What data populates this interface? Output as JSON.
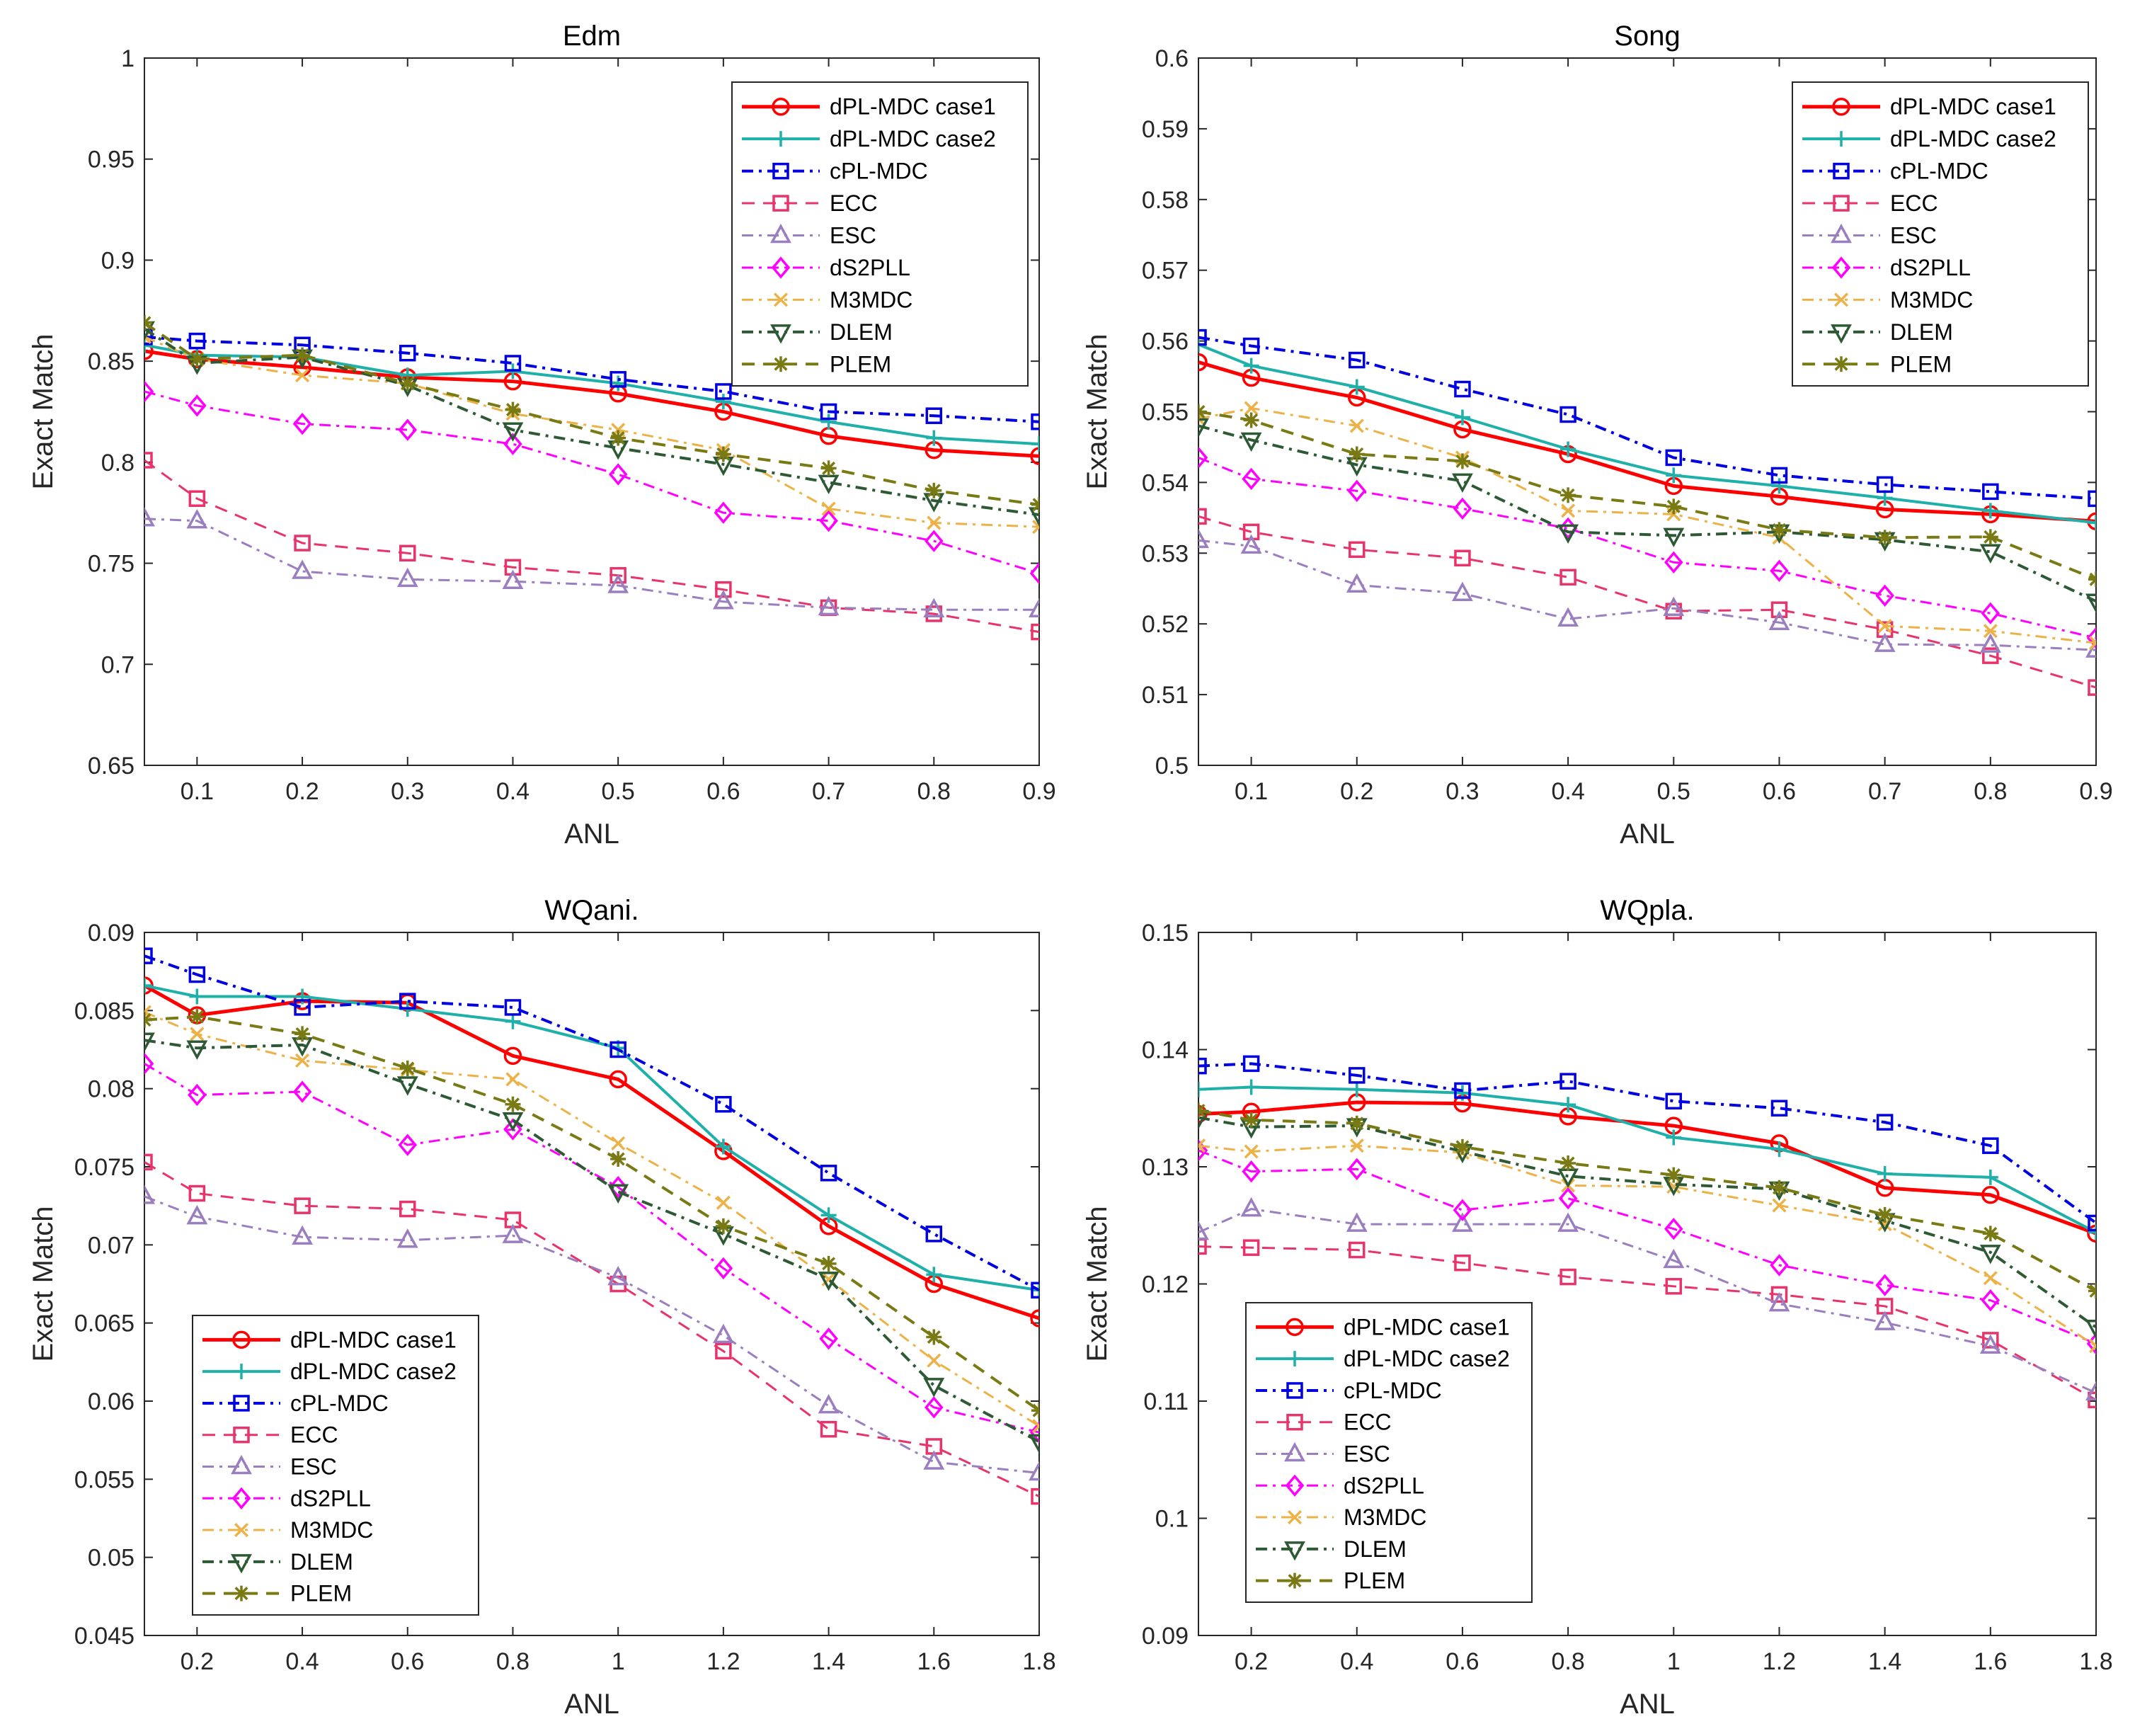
{
  "series_styles": [
    {
      "name": "dPL-MDC case1",
      "color": "#ff0000",
      "dash": "",
      "marker": "circle",
      "lw": 5
    },
    {
      "name": "dPL-MDC case2",
      "color": "#1fb0aa",
      "dash": "",
      "marker": "plus",
      "lw": 4
    },
    {
      "name": "cPL-MDC",
      "color": "#0000e0",
      "dash": "16 8 4 8",
      "marker": "square",
      "lw": 4
    },
    {
      "name": "ECC",
      "color": "#e8336b",
      "dash": "18 12",
      "marker": "square",
      "lw": 3
    },
    {
      "name": "ESC",
      "color": "#9a7ec0",
      "dash": "16 8 4 8",
      "marker": "triangle",
      "lw": 3
    },
    {
      "name": "dS2PLL",
      "color": "#ff00ff",
      "dash": "16 8 4 8",
      "marker": "diamond",
      "lw": 3
    },
    {
      "name": "M3MDC",
      "color": "#edb247",
      "dash": "16 8 4 8",
      "marker": "x",
      "lw": 3
    },
    {
      "name": "DLEM",
      "color": "#2d5a34",
      "dash": "16 8 4 8",
      "marker": "triangle-down",
      "lw": 4
    },
    {
      "name": "PLEM",
      "color": "#7a7a14",
      "dash": "18 12",
      "marker": "star",
      "lw": 4
    }
  ],
  "chart_data": [
    {
      "type": "line",
      "title": "Edm",
      "xlabel": "ANL",
      "ylabel": "Exact Match",
      "xlim": [
        0.05,
        0.9
      ],
      "ylim": [
        0.65,
        1.0
      ],
      "xticks": [
        0.1,
        0.2,
        0.3,
        0.4,
        0.5,
        0.6,
        0.7,
        0.8,
        0.9
      ],
      "xtick_labels": [
        "0.1",
        "0.2",
        "0.3",
        "0.4",
        "0.5",
        "0.6",
        "0.7",
        "0.8",
        "0.9"
      ],
      "yticks": [
        0.65,
        0.7,
        0.75,
        0.8,
        0.85,
        0.9,
        0.95,
        1.0
      ],
      "ytick_labels": [
        "0.65",
        "0.7",
        "0.75",
        "0.8",
        "0.85",
        "0.9",
        "0.95",
        "1"
      ],
      "legend": "top-right",
      "x": [
        0.05,
        0.1,
        0.2,
        0.3,
        0.4,
        0.5,
        0.6,
        0.7,
        0.8,
        0.9
      ],
      "series": [
        {
          "name": "dPL-MDC case1",
          "values": [
            0.855,
            0.851,
            0.847,
            0.842,
            0.84,
            0.834,
            0.825,
            0.813,
            0.806,
            0.803
          ]
        },
        {
          "name": "dPL-MDC case2",
          "values": [
            0.858,
            0.853,
            0.852,
            0.843,
            0.845,
            0.839,
            0.83,
            0.82,
            0.812,
            0.809
          ]
        },
        {
          "name": "cPL-MDC",
          "values": [
            0.862,
            0.86,
            0.858,
            0.854,
            0.849,
            0.841,
            0.835,
            0.825,
            0.823,
            0.82
          ]
        },
        {
          "name": "ECC",
          "values": [
            0.801,
            0.782,
            0.76,
            0.755,
            0.748,
            0.744,
            0.737,
            0.728,
            0.725,
            0.716
          ]
        },
        {
          "name": "ESC",
          "values": [
            0.772,
            0.771,
            0.746,
            0.742,
            0.741,
            0.739,
            0.731,
            0.728,
            0.727,
            0.727
          ]
        },
        {
          "name": "dS2PLL",
          "values": [
            0.835,
            0.828,
            0.819,
            0.816,
            0.809,
            0.794,
            0.775,
            0.771,
            0.761,
            0.745
          ]
        },
        {
          "name": "M3MDC",
          "values": [
            0.862,
            0.851,
            0.843,
            0.839,
            0.824,
            0.816,
            0.806,
            0.777,
            0.77,
            0.768
          ]
        },
        {
          "name": "DLEM",
          "values": [
            0.866,
            0.849,
            0.852,
            0.838,
            0.816,
            0.807,
            0.799,
            0.79,
            0.781,
            0.774
          ]
        },
        {
          "name": "PLEM",
          "values": [
            0.869,
            0.851,
            0.853,
            0.839,
            0.826,
            0.812,
            0.804,
            0.797,
            0.786,
            0.779
          ]
        }
      ]
    },
    {
      "type": "line",
      "title": "Song",
      "xlabel": "ANL",
      "ylabel": "Exact Match",
      "xlim": [
        0.05,
        0.9
      ],
      "ylim": [
        0.5,
        0.6
      ],
      "xticks": [
        0.1,
        0.2,
        0.3,
        0.4,
        0.5,
        0.6,
        0.7,
        0.8,
        0.9
      ],
      "xtick_labels": [
        "0.1",
        "0.2",
        "0.3",
        "0.4",
        "0.5",
        "0.6",
        "0.7",
        "0.8",
        "0.9"
      ],
      "yticks": [
        0.5,
        0.51,
        0.52,
        0.53,
        0.54,
        0.55,
        0.56,
        0.57,
        0.58,
        0.59,
        0.6
      ],
      "ytick_labels": [
        "0.5",
        "0.51",
        "0.52",
        "0.53",
        "0.54",
        "0.55",
        "0.56",
        "0.57",
        "0.58",
        "0.59",
        "0.6"
      ],
      "legend": "top-right",
      "x": [
        0.05,
        0.1,
        0.2,
        0.3,
        0.4,
        0.5,
        0.6,
        0.7,
        0.8,
        0.9
      ],
      "series": [
        {
          "name": "dPL-MDC case1",
          "values": [
            0.557,
            0.5548,
            0.552,
            0.5475,
            0.544,
            0.5395,
            0.538,
            0.5362,
            0.5355,
            0.5345
          ]
        },
        {
          "name": "dPL-MDC case2",
          "values": [
            0.5595,
            0.5565,
            0.5535,
            0.5492,
            0.5447,
            0.541,
            0.5395,
            0.5378,
            0.536,
            0.5343
          ]
        },
        {
          "name": "cPL-MDC",
          "values": [
            0.5605,
            0.5593,
            0.5573,
            0.5532,
            0.5496,
            0.5435,
            0.541,
            0.5397,
            0.5387,
            0.5377
          ]
        },
        {
          "name": "ECC",
          "values": [
            0.5352,
            0.533,
            0.5305,
            0.5293,
            0.5266,
            0.5218,
            0.522,
            0.5192,
            0.5155,
            0.511
          ]
        },
        {
          "name": "ESC",
          "values": [
            0.5318,
            0.531,
            0.5255,
            0.5243,
            0.5207,
            0.5222,
            0.5202,
            0.5171,
            0.517,
            0.5163
          ]
        },
        {
          "name": "dS2PLL",
          "values": [
            0.5435,
            0.5405,
            0.5388,
            0.5363,
            0.5335,
            0.5287,
            0.5275,
            0.524,
            0.5215,
            0.518
          ]
        },
        {
          "name": "M3MDC",
          "values": [
            0.549,
            0.5505,
            0.548,
            0.5435,
            0.536,
            0.5355,
            0.5322,
            0.5197,
            0.519,
            0.5173
          ]
        },
        {
          "name": "DLEM",
          "values": [
            0.548,
            0.546,
            0.5425,
            0.5402,
            0.533,
            0.5325,
            0.533,
            0.5319,
            0.5302,
            0.5232
          ]
        },
        {
          "name": "PLEM",
          "values": [
            0.55,
            0.5488,
            0.544,
            0.543,
            0.5382,
            0.5366,
            0.5333,
            0.5322,
            0.5323,
            0.5263
          ]
        }
      ]
    },
    {
      "type": "line",
      "title": "WQani.",
      "xlabel": "ANL",
      "ylabel": "Exact Match",
      "xlim": [
        0.1,
        1.8
      ],
      "ylim": [
        0.045,
        0.09
      ],
      "xticks": [
        0.2,
        0.4,
        0.6,
        0.8,
        1.0,
        1.2,
        1.4,
        1.6,
        1.8
      ],
      "xtick_labels": [
        "0.2",
        "0.4",
        "0.6",
        "0.8",
        "1",
        "1.2",
        "1.4",
        "1.6",
        "1.8"
      ],
      "yticks": [
        0.045,
        0.05,
        0.055,
        0.06,
        0.065,
        0.07,
        0.075,
        0.08,
        0.085,
        0.09
      ],
      "ytick_labels": [
        "0.045",
        "0.05",
        "0.055",
        "0.06",
        "0.065",
        "0.07",
        "0.075",
        "0.08",
        "0.085",
        "0.09"
      ],
      "legend": "bottom-left",
      "x": [
        0.1,
        0.2,
        0.4,
        0.6,
        0.8,
        1.0,
        1.2,
        1.4,
        1.6,
        1.8
      ],
      "series": [
        {
          "name": "dPL-MDC case1",
          "values": [
            0.0866,
            0.0847,
            0.0856,
            0.0855,
            0.0821,
            0.0806,
            0.076,
            0.0712,
            0.0675,
            0.0653
          ]
        },
        {
          "name": "dPL-MDC case2",
          "values": [
            0.0866,
            0.0859,
            0.0859,
            0.0851,
            0.0843,
            0.0826,
            0.0763,
            0.0719,
            0.0681,
            0.0671
          ]
        },
        {
          "name": "cPL-MDC",
          "values": [
            0.0885,
            0.0873,
            0.0852,
            0.0856,
            0.0852,
            0.0825,
            0.079,
            0.0746,
            0.0707,
            0.0671
          ]
        },
        {
          "name": "ECC",
          "values": [
            0.0753,
            0.0733,
            0.0725,
            0.0723,
            0.0716,
            0.0675,
            0.0632,
            0.0582,
            0.0571,
            0.0539
          ]
        },
        {
          "name": "ESC",
          "values": [
            0.0731,
            0.0718,
            0.0705,
            0.0703,
            0.0706,
            0.0679,
            0.0642,
            0.0597,
            0.0561,
            0.0554
          ]
        },
        {
          "name": "dS2PLL",
          "values": [
            0.0816,
            0.0796,
            0.0798,
            0.0764,
            0.0774,
            0.0737,
            0.0685,
            0.064,
            0.0596,
            0.058
          ]
        },
        {
          "name": "M3MDC",
          "values": [
            0.0849,
            0.0835,
            0.0818,
            0.0812,
            0.0806,
            0.0765,
            0.0727,
            0.0678,
            0.0626,
            0.0584
          ]
        },
        {
          "name": "DLEM",
          "values": [
            0.0831,
            0.0826,
            0.0828,
            0.0803,
            0.078,
            0.0734,
            0.0707,
            0.0678,
            0.061,
            0.0574
          ]
        },
        {
          "name": "PLEM",
          "values": [
            0.0844,
            0.0846,
            0.0835,
            0.0813,
            0.079,
            0.0755,
            0.0712,
            0.0688,
            0.0641,
            0.0594
          ]
        }
      ]
    },
    {
      "type": "line",
      "title": "WQpla.",
      "xlabel": "ANL",
      "ylabel": "Exact Match",
      "xlim": [
        0.1,
        1.8
      ],
      "ylim": [
        0.09,
        0.15
      ],
      "xticks": [
        0.2,
        0.4,
        0.6,
        0.8,
        1.0,
        1.2,
        1.4,
        1.6,
        1.8
      ],
      "xtick_labels": [
        "0.2",
        "0.4",
        "0.6",
        "0.8",
        "1",
        "1.2",
        "1.4",
        "1.6",
        "1.8"
      ],
      "yticks": [
        0.09,
        0.1,
        0.11,
        0.12,
        0.13,
        0.14,
        0.15
      ],
      "ytick_labels": [
        "0.09",
        "0.1",
        "0.11",
        "0.12",
        "0.13",
        "0.14",
        "0.15"
      ],
      "legend": "bottom-left",
      "x": [
        0.1,
        0.2,
        0.4,
        0.6,
        0.8,
        1.0,
        1.2,
        1.4,
        1.6,
        1.8
      ],
      "series": [
        {
          "name": "dPL-MDC case1",
          "values": [
            0.1345,
            0.1347,
            0.1355,
            0.1354,
            0.1343,
            0.1335,
            0.132,
            0.1282,
            0.1276,
            0.1243
          ]
        },
        {
          "name": "dPL-MDC case2",
          "values": [
            0.1366,
            0.1368,
            0.1366,
            0.1363,
            0.1353,
            0.1325,
            0.1315,
            0.1294,
            0.1291,
            0.1244
          ]
        },
        {
          "name": "cPL-MDC",
          "values": [
            0.1386,
            0.1388,
            0.1378,
            0.1365,
            0.1373,
            0.1356,
            0.135,
            0.1338,
            0.1318,
            0.1252
          ]
        },
        {
          "name": "ECC",
          "values": [
            0.1232,
            0.1231,
            0.1229,
            0.1218,
            0.1206,
            0.1198,
            0.1191,
            0.1181,
            0.1152,
            0.1101
          ]
        },
        {
          "name": "ESC",
          "values": [
            0.1244,
            0.1264,
            0.1251,
            0.1251,
            0.1251,
            0.122,
            0.1183,
            0.1167,
            0.1147,
            0.1107
          ]
        },
        {
          "name": "dS2PLL",
          "values": [
            0.1314,
            0.1296,
            0.1298,
            0.1263,
            0.1273,
            0.1247,
            0.1216,
            0.1199,
            0.1186,
            0.1149
          ]
        },
        {
          "name": "M3MDC",
          "values": [
            0.1318,
            0.1313,
            0.1318,
            0.1312,
            0.1284,
            0.1283,
            0.1267,
            0.1251,
            0.1205,
            0.1147
          ]
        },
        {
          "name": "DLEM",
          "values": [
            0.1342,
            0.1334,
            0.1335,
            0.1313,
            0.1292,
            0.1285,
            0.1281,
            0.1254,
            0.1227,
            0.1163
          ]
        },
        {
          "name": "PLEM",
          "values": [
            0.1348,
            0.134,
            0.1337,
            0.1317,
            0.1303,
            0.1293,
            0.1282,
            0.1259,
            0.1243,
            0.1194
          ]
        }
      ]
    }
  ]
}
